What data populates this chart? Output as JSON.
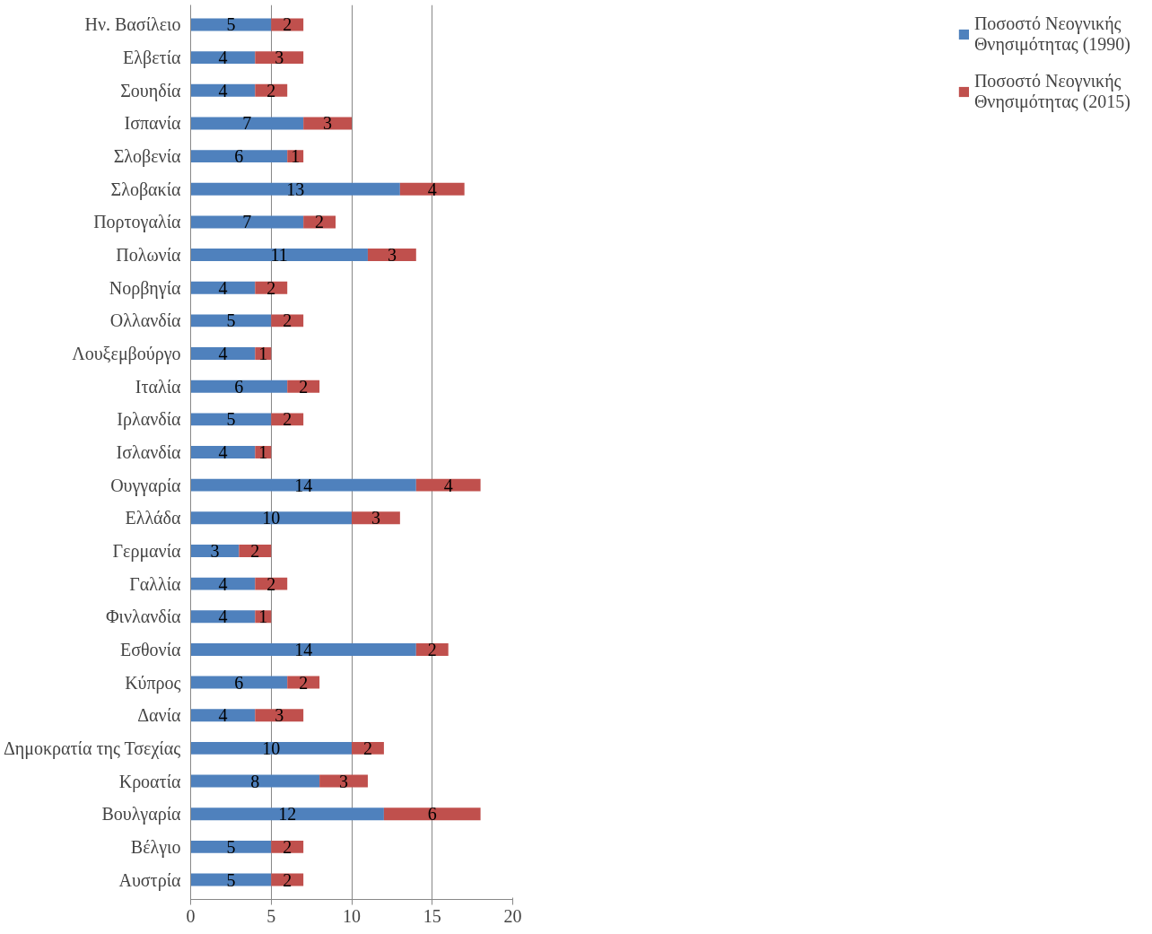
{
  "chart_data": {
    "type": "bar",
    "orientation": "horizontal",
    "stacked": true,
    "data_labels": true,
    "grid": "x",
    "legend": "right",
    "categories": [
      "Ην. Βασίλειο",
      "Ελβετία",
      "Σουηδία",
      "Ισπανία",
      "Σλοβενία",
      "Σλοβακία",
      "Πορτογαλία",
      "Πολωνία",
      "Νορβηγία",
      "Ολλανδία",
      "Λουξεμβούργο",
      "Ιταλία",
      "Ιρλανδία",
      "Ισλανδία",
      "Ουγγαρία",
      "Ελλάδα",
      "Γερμανία",
      "Γαλλία",
      "Φινλανδία",
      "Εσθονία",
      "Κύπρος",
      "Δανία",
      "Δημοκρατία της Τσεχίας",
      "Κροατία",
      "Βουλγαρία",
      "Βέλγιο",
      "Αυστρία"
    ],
    "series": [
      {
        "name": "Ποσοστό Νεογνικής Θνησιμότητας (1990)",
        "color": "#4f81bd",
        "values": [
          5,
          4,
          4,
          7,
          6,
          13,
          7,
          11,
          4,
          5,
          4,
          6,
          5,
          4,
          14,
          10,
          3,
          4,
          4,
          14,
          6,
          4,
          10,
          8,
          12,
          5,
          5
        ]
      },
      {
        "name": "Ποσοστό Νεογνικής Θνησιμότητας (2015)",
        "color": "#c0504d",
        "values": [
          2,
          3,
          2,
          3,
          1,
          4,
          2,
          3,
          2,
          2,
          1,
          2,
          2,
          1,
          4,
          3,
          2,
          2,
          1,
          2,
          2,
          3,
          2,
          3,
          6,
          2,
          2
        ]
      }
    ],
    "xlim": [
      0,
      20
    ],
    "xticks": [
      0,
      5,
      10,
      15,
      20
    ]
  }
}
